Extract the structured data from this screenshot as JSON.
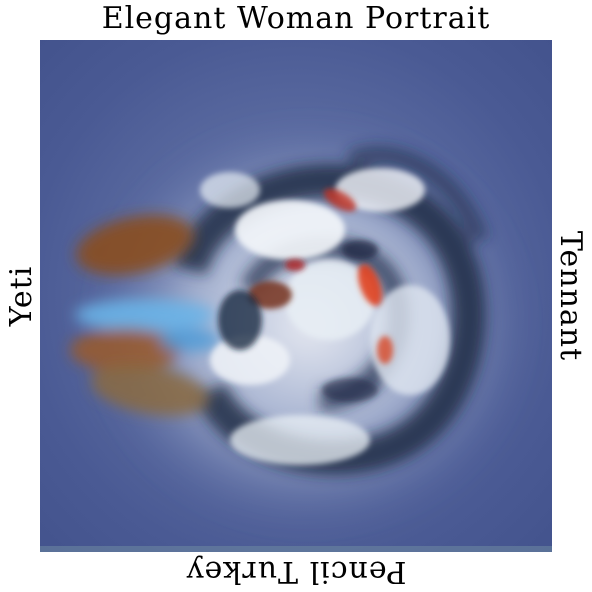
{
  "labels": {
    "top": "Elegant Woman Portrait",
    "bottom": "Pencil Turkey",
    "left": "Yeti",
    "right": "Tennant"
  },
  "artwork": {
    "background_color": "#4e5e98",
    "accent_colors": [
      "#ffffff",
      "#e8eef5",
      "#1a2540",
      "#9a5a2a",
      "#6ab4e8",
      "#e04020",
      "#c8d4e4"
    ]
  }
}
